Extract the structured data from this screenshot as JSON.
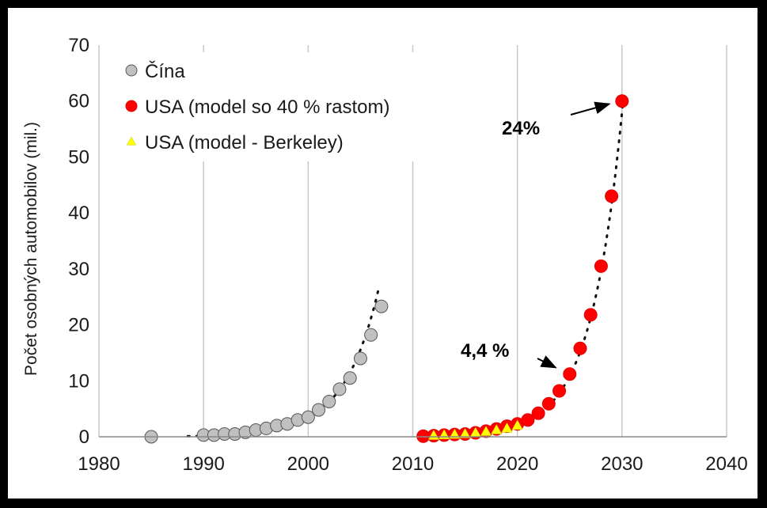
{
  "chart_data": {
    "type": "scatter",
    "title": "",
    "xlabel": "",
    "ylabel": "Počet osobných automobilov (mil.)",
    "xlim": [
      1980,
      2040
    ],
    "ylim": [
      0,
      70
    ],
    "x_ticks": [
      "1980",
      "1990",
      "2000",
      "2010",
      "2020",
      "2030",
      "2040"
    ],
    "y_ticks": [
      "0",
      "10",
      "20",
      "30",
      "40",
      "50",
      "60",
      "70"
    ],
    "grid": "vertical",
    "legend_position": "top-left",
    "series": [
      {
        "name": "Čína",
        "marker": "circle",
        "color": "#c0c0c0",
        "points": [
          [
            1985,
            0.0
          ],
          [
            1990,
            0.3
          ],
          [
            1991,
            0.3
          ],
          [
            1992,
            0.5
          ],
          [
            1993,
            0.5
          ],
          [
            1994,
            0.8
          ],
          [
            1995,
            1.2
          ],
          [
            1996,
            1.5
          ],
          [
            1997,
            2.0
          ],
          [
            1998,
            2.3
          ],
          [
            1999,
            3.0
          ],
          [
            2000,
            3.5
          ],
          [
            2001,
            4.8
          ],
          [
            2002,
            6.3
          ],
          [
            2003,
            8.5
          ],
          [
            2004,
            10.5
          ],
          [
            2005,
            14.0
          ],
          [
            2006,
            18.2
          ],
          [
            2007,
            23.3
          ]
        ],
        "trend": {
          "from": 1988.5,
          "to": 2006.8,
          "y0": 0.1,
          "y1": 27.0
        }
      },
      {
        "name": "USA (model so 40 % rastom)",
        "marker": "circle",
        "color": "#ff0000",
        "points": [
          [
            2011,
            0.1
          ],
          [
            2012,
            0.2
          ],
          [
            2013,
            0.3
          ],
          [
            2014,
            0.4
          ],
          [
            2015,
            0.5
          ],
          [
            2016,
            0.7
          ],
          [
            2017,
            1.0
          ],
          [
            2018,
            1.4
          ],
          [
            2019,
            1.9
          ],
          [
            2020,
            2.3
          ],
          [
            2021,
            3.0
          ],
          [
            2022,
            4.2
          ],
          [
            2023,
            5.9
          ],
          [
            2024,
            8.2
          ],
          [
            2025,
            11.2
          ],
          [
            2026,
            15.8
          ],
          [
            2027,
            21.8
          ],
          [
            2028,
            30.5
          ],
          [
            2029,
            43.0
          ],
          [
            2030,
            60.0
          ]
        ],
        "trend": {
          "from": 2011,
          "to": 2030.1,
          "y0": 0.1,
          "y1": 60.0
        }
      },
      {
        "name": "USA (model - Berkeley)",
        "marker": "triangle",
        "color": "#ffff00",
        "points": [
          [
            2012,
            0.2
          ],
          [
            2013,
            0.3
          ],
          [
            2014,
            0.4
          ],
          [
            2015,
            0.5
          ],
          [
            2016,
            0.7
          ],
          [
            2017,
            0.9
          ],
          [
            2018,
            1.2
          ],
          [
            2019,
            1.5
          ],
          [
            2020,
            2.0
          ]
        ]
      }
    ],
    "annotations": [
      {
        "text": "24%",
        "points_to": [
          2029.8,
          60.0
        ]
      },
      {
        "text": "4,4 %",
        "points_to": [
          2024.6,
          11.5
        ]
      }
    ]
  }
}
